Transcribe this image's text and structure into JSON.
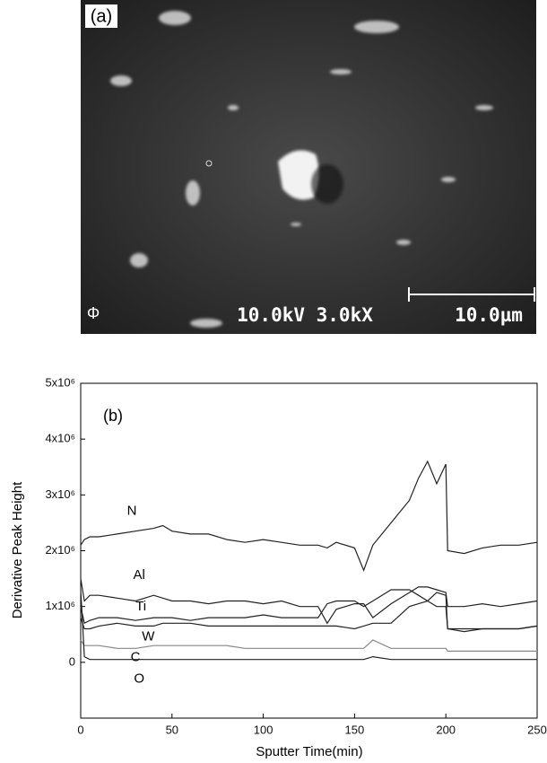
{
  "image": {
    "label": "(a)",
    "caption": "10.0kV 3.0kX",
    "scale": "10.0µm",
    "logo": "Φ"
  },
  "chart_data": {
    "type": "line",
    "title": "(b)",
    "x_label": "Sputter Time(min)",
    "y_label": "Derivative Peak Height",
    "x": [
      0,
      2,
      5,
      10,
      20,
      30,
      40,
      45,
      50,
      60,
      70,
      80,
      90,
      100,
      110,
      120,
      130,
      135,
      140,
      150,
      155,
      160,
      170,
      180,
      185,
      190,
      195,
      200,
      201,
      210,
      220,
      230,
      240,
      250
    ],
    "series": [
      {
        "name": "N",
        "color": "#222222",
        "values": [
          2100000,
          2200000,
          2250000,
          2250000,
          2300000,
          2350000,
          2400000,
          2450000,
          2350000,
          2300000,
          2300000,
          2200000,
          2150000,
          2200000,
          2150000,
          2100000,
          2100000,
          2050000,
          2150000,
          2050000,
          1650000,
          2100000,
          2500000,
          2900000,
          3300000,
          3600000,
          3200000,
          3550000,
          2000000,
          1950000,
          2050000,
          2100000,
          2100000,
          2150000
        ]
      },
      {
        "name": "Al",
        "color": "#222222",
        "values": [
          1500000,
          1100000,
          1200000,
          1200000,
          1150000,
          1100000,
          1200000,
          1150000,
          1100000,
          1100000,
          1050000,
          1100000,
          1100000,
          1050000,
          1100000,
          1000000,
          1000000,
          700000,
          950000,
          1050000,
          1050000,
          800000,
          1050000,
          1250000,
          1350000,
          1350000,
          1300000,
          1250000,
          1000000,
          1000000,
          1050000,
          1000000,
          1050000,
          1100000
        ]
      },
      {
        "name": "Ti",
        "color": "#222222",
        "values": [
          1000000,
          700000,
          750000,
          800000,
          800000,
          750000,
          800000,
          800000,
          800000,
          750000,
          800000,
          800000,
          800000,
          850000,
          800000,
          800000,
          800000,
          1050000,
          1100000,
          1100000,
          1000000,
          1100000,
          1300000,
          1300000,
          1200000,
          1100000,
          1250000,
          1200000,
          600000,
          550000,
          600000,
          600000,
          600000,
          650000
        ]
      },
      {
        "name": "W",
        "color": "#222222",
        "values": [
          800000,
          600000,
          600000,
          650000,
          700000,
          650000,
          650000,
          700000,
          700000,
          700000,
          650000,
          650000,
          650000,
          650000,
          650000,
          650000,
          650000,
          650000,
          650000,
          600000,
          650000,
          700000,
          700000,
          1000000,
          1050000,
          1100000,
          1000000,
          1000000,
          600000,
          600000,
          600000,
          600000,
          600000,
          650000
        ]
      },
      {
        "name": "C",
        "color": "#888888",
        "values": [
          400000,
          300000,
          300000,
          300000,
          250000,
          250000,
          300000,
          300000,
          300000,
          300000,
          300000,
          300000,
          250000,
          250000,
          250000,
          250000,
          250000,
          250000,
          250000,
          250000,
          250000,
          400000,
          250000,
          250000,
          250000,
          250000,
          250000,
          250000,
          200000,
          200000,
          200000,
          200000,
          200000,
          200000
        ]
      },
      {
        "name": "O",
        "color": "#222222",
        "values": [
          1300000,
          100000,
          50000,
          50000,
          50000,
          50000,
          50000,
          50000,
          50000,
          50000,
          50000,
          50000,
          50000,
          50000,
          50000,
          50000,
          50000,
          50000,
          50000,
          50000,
          50000,
          100000,
          50000,
          50000,
          50000,
          50000,
          50000,
          50000,
          50000,
          50000,
          50000,
          50000,
          50000,
          50000
        ]
      }
    ],
    "xlim": [
      0,
      250
    ],
    "xticks": [
      0,
      50,
      100,
      150,
      200,
      250
    ],
    "ylim": [
      -1000000,
      5000000
    ],
    "yticks": [
      0,
      {
        "value": 1000000,
        "label": "1x10⁶"
      },
      {
        "value": 2000000,
        "label": "2x10⁶"
      },
      {
        "value": 3000000,
        "label": "3x10⁶"
      },
      {
        "value": 4000000,
        "label": "4x10⁶"
      },
      {
        "value": 5000000,
        "label": "5x10⁶"
      }
    ]
  }
}
